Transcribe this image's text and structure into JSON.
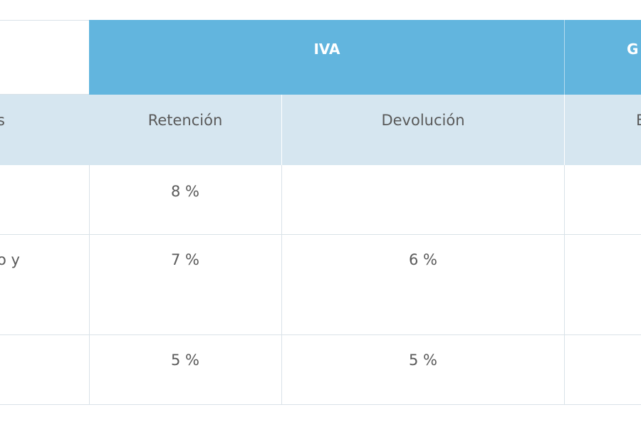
{
  "table": {
    "group_headers": [
      "IVA",
      "G"
    ],
    "column_headers": [
      "s",
      "Retención",
      "Devolución",
      "E"
    ],
    "rows": [
      {
        "retencion": "8 %"
      },
      {
        "label": "o y",
        "retencion": "7 %",
        "devolucion": "6 %"
      },
      {
        "retencion": "5 %",
        "devolucion": "5 %"
      }
    ]
  }
}
